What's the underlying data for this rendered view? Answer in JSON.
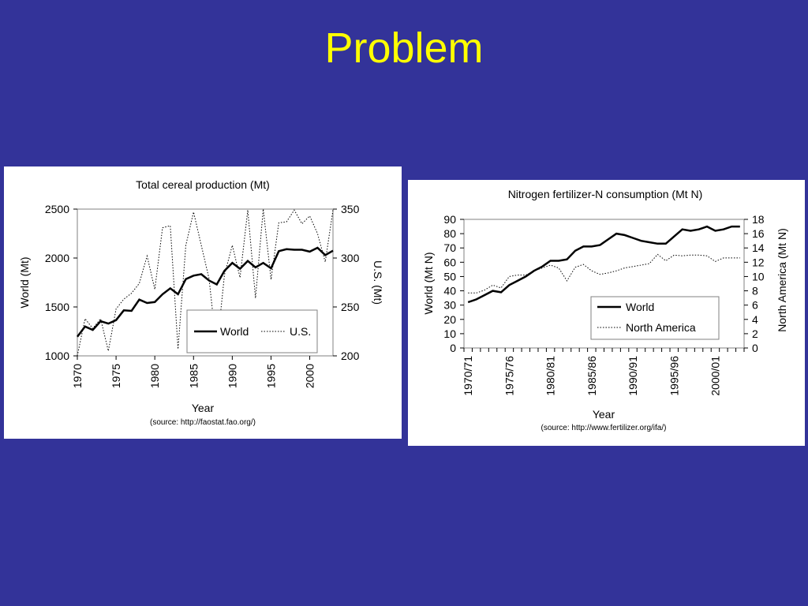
{
  "slide": {
    "title": "Problem"
  },
  "chart_data": [
    {
      "type": "line",
      "title": "Total cereal production (Mt)",
      "xlabel": "Year",
      "source": "(source: http://faostat.fao.org/)",
      "ylabel_left": "World (Mt)",
      "ylabel_right": "U.S. (Mt)",
      "xlim": [
        1970,
        2003
      ],
      "ylim_left": [
        1000,
        2500
      ],
      "ylim_right": [
        200,
        350
      ],
      "x_ticks": [
        "1970",
        "1975",
        "1980",
        "1985",
        "1990",
        "1995",
        "2000"
      ],
      "y_ticks_left": [
        "1000",
        "1500",
        "2000",
        "2500"
      ],
      "y_ticks_right": [
        "200",
        "250",
        "300",
        "350"
      ],
      "legend_position": "bottom-right",
      "x": [
        1970,
        1971,
        1972,
        1973,
        1974,
        1975,
        1976,
        1977,
        1978,
        1979,
        1980,
        1981,
        1982,
        1983,
        1984,
        1985,
        1986,
        1987,
        1988,
        1989,
        1990,
        1991,
        1992,
        1993,
        1994,
        1995,
        1996,
        1997,
        1998,
        1999,
        2000,
        2001,
        2002,
        2003
      ],
      "series": [
        {
          "name": "World",
          "axis": "left",
          "style": "solid",
          "values": [
            1195,
            1300,
            1265,
            1355,
            1330,
            1365,
            1465,
            1460,
            1575,
            1540,
            1550,
            1630,
            1690,
            1630,
            1785,
            1820,
            1835,
            1770,
            1730,
            1870,
            1950,
            1890,
            1970,
            1905,
            1950,
            1895,
            2070,
            2090,
            2085,
            2085,
            2065,
            2105,
            2030,
            2075
          ]
        },
        {
          "name": "U.S.",
          "axis": "left-right",
          "style": "dotted",
          "values": [
            200,
            238,
            228,
            238,
            205,
            248,
            258,
            264,
            274,
            302,
            268,
            331,
            333,
            207,
            313,
            347,
            313,
            279,
            206,
            283,
            313,
            280,
            349,
            259,
            350,
            278,
            336,
            337,
            349,
            335,
            343,
            325,
            296,
            349
          ]
        }
      ]
    },
    {
      "type": "line",
      "title": "Nitrogen fertilizer-N consumption (Mt N)",
      "xlabel": "Year",
      "source": "(source: http://www.fertilizer.org/ifa/)",
      "ylabel_left": "World (Mt N)",
      "ylabel_right": "North America (Mt N)",
      "ylim_left": [
        0,
        90
      ],
      "ylim_right": [
        0,
        18
      ],
      "y_ticks_left": [
        "0",
        "10",
        "20",
        "30",
        "40",
        "50",
        "60",
        "70",
        "80",
        "90"
      ],
      "y_ticks_right": [
        "0",
        "2",
        "4",
        "6",
        "8",
        "10",
        "12",
        "14",
        "16",
        "18"
      ],
      "x_ticks": [
        "1970/71",
        "1975/76",
        "1980/81",
        "1985/86",
        "1990/91",
        "1995/96",
        "2000/01"
      ],
      "legend_position": "right-middle",
      "x_index": [
        0,
        1,
        2,
        3,
        4,
        5,
        6,
        7,
        8,
        9,
        10,
        11,
        12,
        13,
        14,
        15,
        16,
        17,
        18,
        19,
        20,
        21,
        22,
        23,
        24,
        25,
        26,
        27,
        28,
        29,
        30,
        31,
        32,
        33
      ],
      "series": [
        {
          "name": "World",
          "axis": "left",
          "style": "solid",
          "values": [
            32,
            34,
            37,
            40,
            39,
            44,
            47,
            50,
            54,
            57,
            61,
            61,
            62,
            68,
            71,
            71,
            72,
            76,
            80,
            79,
            77,
            75,
            74,
            73,
            73,
            78,
            83,
            82,
            83,
            85,
            82,
            83,
            85,
            85
          ]
        },
        {
          "name": "North America",
          "axis": "right",
          "style": "dotted",
          "values": [
            7.7,
            7.7,
            8.1,
            8.8,
            8.4,
            10.0,
            10.2,
            10.2,
            10.8,
            11.2,
            11.6,
            11.2,
            9.4,
            11.3,
            11.7,
            10.8,
            10.3,
            10.5,
            10.8,
            11.2,
            11.4,
            11.6,
            11.8,
            13.1,
            12.2,
            13.0,
            12.9,
            13.0,
            13.0,
            12.9,
            12.1,
            12.6,
            12.6,
            12.6
          ]
        }
      ]
    }
  ]
}
